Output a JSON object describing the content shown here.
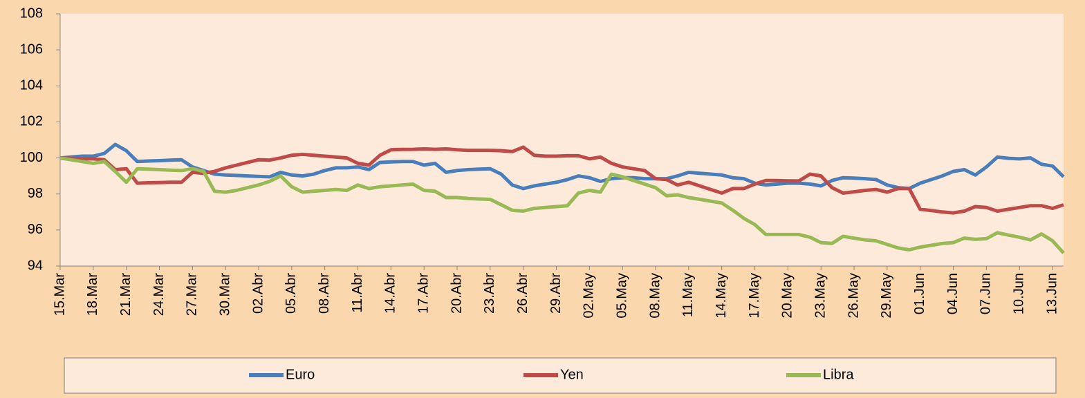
{
  "chart_data": {
    "type": "line",
    "categories": [
      "15.Mar",
      null,
      null,
      "18.Mar",
      null,
      null,
      "21.Mar",
      null,
      null,
      "24.Mar",
      null,
      null,
      "27.Mar",
      null,
      null,
      "30.Mar",
      null,
      null,
      "02.Abr",
      null,
      null,
      "05.Abr",
      null,
      null,
      "08.Abr",
      null,
      null,
      "11.Abr",
      null,
      null,
      "14.Abr",
      null,
      null,
      "17.Abr",
      null,
      null,
      "20.Abr",
      null,
      null,
      "23.Abr",
      null,
      null,
      "26.Abr",
      null,
      null,
      "29.Abr",
      null,
      null,
      "02.May",
      null,
      null,
      "05.May",
      null,
      null,
      "08.May",
      null,
      null,
      "11.May",
      null,
      null,
      "14.May",
      null,
      null,
      "17.May",
      null,
      null,
      "20.May",
      null,
      null,
      "23.May",
      null,
      null,
      "26.May",
      null,
      null,
      "29.May",
      null,
      null,
      "01.Jun",
      null,
      null,
      "04.Jun",
      null,
      null,
      "07.Jun",
      null,
      null,
      "10.Jun",
      null,
      null,
      "13.Jun",
      null
    ],
    "series": [
      {
        "name": "Euro",
        "color": "#4a7ebb",
        "values": [
          100,
          100.05,
          100.1,
          100.1,
          100.25,
          100.75,
          100.4,
          99.8,
          99.83,
          99.85,
          99.88,
          99.9,
          99.5,
          99.3,
          99.1,
          99.05,
          99.03,
          99.0,
          98.97,
          98.95,
          99.2,
          99.05,
          99.0,
          99.1,
          99.3,
          99.45,
          99.45,
          99.5,
          99.35,
          99.75,
          99.78,
          99.8,
          99.8,
          99.6,
          99.7,
          99.2,
          99.3,
          99.35,
          99.38,
          99.4,
          99.1,
          98.5,
          98.3,
          98.45,
          98.55,
          98.65,
          98.8,
          99.0,
          98.9,
          98.7,
          98.85,
          98.9,
          98.9,
          98.85,
          98.85,
          98.85,
          99.0,
          99.2,
          99.15,
          99.1,
          99.05,
          98.9,
          98.85,
          98.6,
          98.5,
          98.55,
          98.6,
          98.6,
          98.55,
          98.45,
          98.75,
          98.9,
          98.88,
          98.85,
          98.8,
          98.5,
          98.35,
          98.3,
          98.6,
          98.8,
          99.0,
          99.25,
          99.35,
          99.05,
          99.5,
          100.05,
          99.98,
          99.95,
          100.0,
          99.65,
          99.55,
          98.95
        ]
      },
      {
        "name": "Yen",
        "color": "#be4b48",
        "values": [
          100,
          99.98,
          99.95,
          99.95,
          99.9,
          99.35,
          99.4,
          98.6,
          98.62,
          98.63,
          98.65,
          98.65,
          99.2,
          99.15,
          99.25,
          99.45,
          99.6,
          99.75,
          99.9,
          99.88,
          100.0,
          100.15,
          100.2,
          100.15,
          100.1,
          100.05,
          100.0,
          99.7,
          99.6,
          100.15,
          100.45,
          100.47,
          100.48,
          100.5,
          100.48,
          100.5,
          100.45,
          100.42,
          100.42,
          100.42,
          100.4,
          100.35,
          100.6,
          100.15,
          100.1,
          100.1,
          100.12,
          100.12,
          99.95,
          100.05,
          99.7,
          99.5,
          99.4,
          99.3,
          98.85,
          98.8,
          98.5,
          98.65,
          98.45,
          98.25,
          98.05,
          98.3,
          98.3,
          98.55,
          98.75,
          98.75,
          98.73,
          98.72,
          99.1,
          99.0,
          98.35,
          98.05,
          98.12,
          98.2,
          98.25,
          98.1,
          98.3,
          98.3,
          97.15,
          97.08,
          97.0,
          96.95,
          97.05,
          97.3,
          97.25,
          97.05,
          97.15,
          97.25,
          97.35,
          97.35,
          97.2,
          97.4
        ]
      },
      {
        "name": "Libra",
        "color": "#98b954",
        "values": [
          100,
          99.9,
          99.8,
          99.7,
          99.8,
          99.25,
          98.65,
          99.4,
          99.38,
          99.35,
          99.32,
          99.3,
          99.4,
          99.25,
          98.15,
          98.1,
          98.2,
          98.35,
          98.5,
          98.7,
          99.0,
          98.4,
          98.1,
          98.15,
          98.2,
          98.25,
          98.2,
          98.5,
          98.3,
          98.4,
          98.45,
          98.5,
          98.55,
          98.2,
          98.15,
          97.8,
          97.8,
          97.75,
          97.72,
          97.7,
          97.4,
          97.1,
          97.05,
          97.2,
          97.25,
          97.3,
          97.35,
          98.05,
          98.2,
          98.1,
          99.1,
          98.95,
          98.75,
          98.55,
          98.35,
          97.9,
          97.95,
          97.8,
          97.7,
          97.6,
          97.5,
          97.1,
          96.65,
          96.3,
          95.75,
          95.75,
          95.75,
          95.75,
          95.6,
          95.3,
          95.25,
          95.65,
          95.55,
          95.45,
          95.4,
          95.2,
          95.0,
          94.9,
          95.05,
          95.15,
          95.25,
          95.3,
          95.55,
          95.48,
          95.52,
          95.85,
          95.72,
          95.6,
          95.45,
          95.78,
          95.4,
          94.72
        ]
      }
    ],
    "ylim": [
      94,
      108
    ],
    "yticks": [
      94,
      96,
      98,
      100,
      102,
      104,
      106,
      108
    ],
    "legend": "bottom"
  }
}
